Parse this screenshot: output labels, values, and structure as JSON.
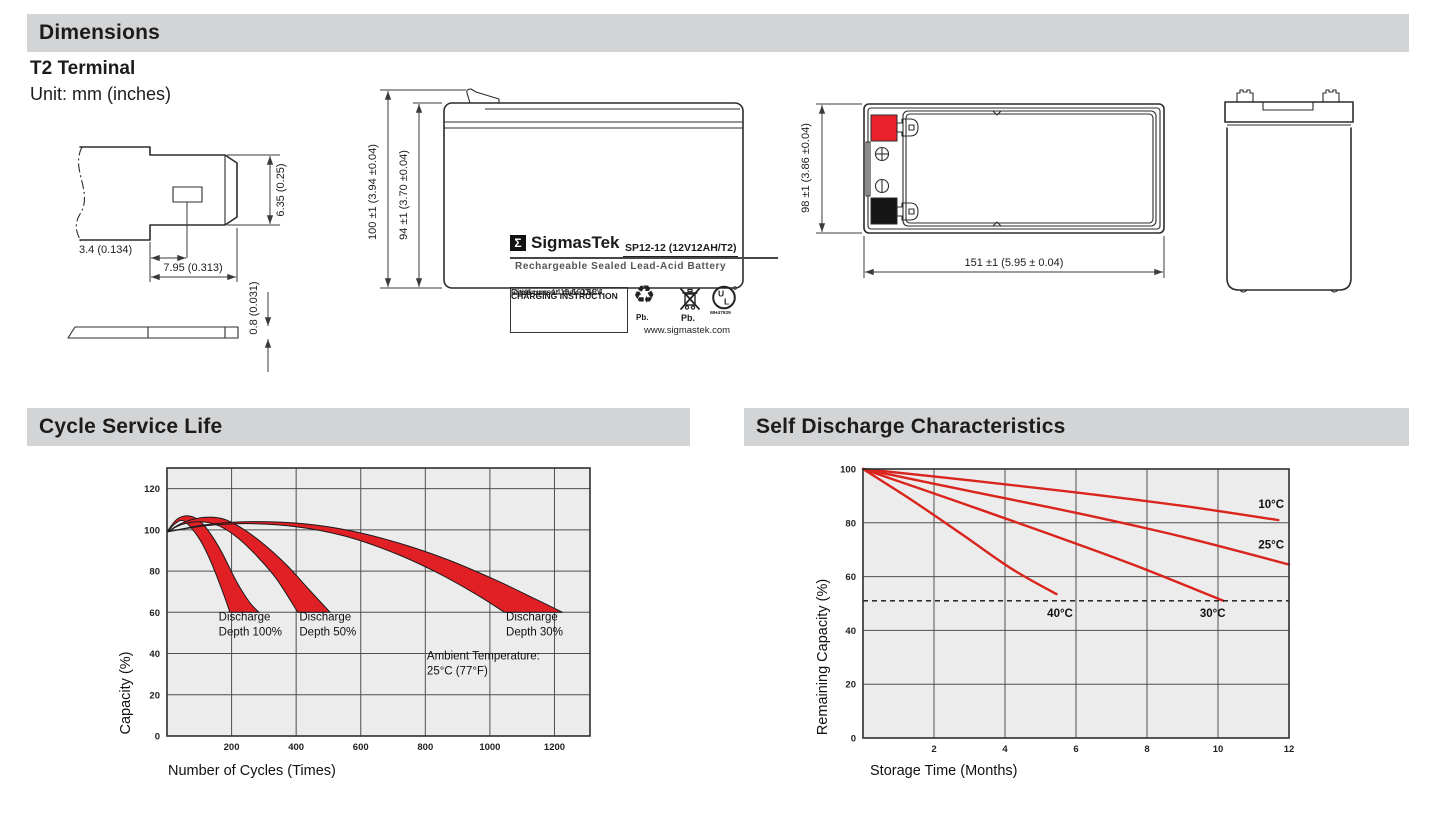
{
  "sections": {
    "dimensions_title": "Dimensions",
    "cycle_title": "Cycle Service Life",
    "self_discharge_title": "Self Discharge Characteristics"
  },
  "dimensions": {
    "terminal_type": "T2 Terminal",
    "unit_note": "Unit: mm (inches)",
    "terminal_detail": {
      "height": "6.35 (0.25)",
      "offset": "3.4 (0.134)",
      "width": "7.95 (0.313)",
      "thickness": "0.8 (0.031)"
    },
    "front_view": {
      "total_height": "100 ±1 (3.94 ±0.04)",
      "case_height": "94 ±1 (3.70 ±0.04)"
    },
    "top_view": {
      "width": "98 ±1 (3.86 ±0.04)",
      "length": "151 ±1 (5.95 ± 0.04)"
    },
    "label": {
      "sigma": "Σ",
      "brand": "SigmasTek",
      "model": "SP12-12 (12V12AH/T2)",
      "subtitle": "Rechargeable Sealed Lead-Acid Battery",
      "charging_title": "CHARGING INSTRUCTION",
      "charging_lines": [
        "Floating use: 13.5~13.8V",
        "Cycle use: 14.4~15.0V",
        "Initial current: max 0.3CA"
      ],
      "pb_recycle": "Pb.",
      "pb_bin": "Pb.",
      "recycle_glyph": "♻",
      "ul_letters": "UL",
      "ul_code": "MH47929",
      "website": "www.sigmastek.com"
    }
  },
  "colors": {
    "accent_red": "#e8212b",
    "band_red": "#e02025",
    "line_red": "#d9251d",
    "header_bar_bg": "#d3d4d6",
    "plot_bg": "#ececec"
  },
  "chart_data": [
    {
      "type": "area",
      "title": "Cycle Service Life",
      "xlabel": "Number of Cycles (Times)",
      "ylabel": "Capacity (%)",
      "xlim": [
        0,
        1310
      ],
      "ylim": [
        0,
        130
      ],
      "x_ticks": [
        200,
        400,
        600,
        800,
        1000,
        1200
      ],
      "y_ticks": [
        0,
        20,
        40,
        60,
        80,
        100,
        120
      ],
      "grid": true,
      "plot_bg": "#ececec",
      "band_color": "#e02025",
      "bands": [
        {
          "name": "Discharge Depth 100%",
          "upper": [
            [
              0,
              99
            ],
            [
              30,
              105
            ],
            [
              65,
              106.8
            ],
            [
              100,
              104.5
            ],
            [
              135,
              98
            ],
            [
              170,
              89
            ],
            [
              215,
              75
            ],
            [
              255,
              65
            ],
            [
              285,
              60
            ]
          ],
          "lower": [
            [
              0,
              99
            ],
            [
              25,
              103
            ],
            [
              50,
              104.5
            ],
            [
              80,
              100
            ],
            [
              110,
              93
            ],
            [
              140,
              83
            ],
            [
              170,
              71
            ],
            [
              195,
              60
            ]
          ]
        },
        {
          "name": "Discharge Depth 50%",
          "upper": [
            [
              0,
              99
            ],
            [
              50,
              103.5
            ],
            [
              110,
              106
            ],
            [
              170,
              105.5
            ],
            [
              230,
              101
            ],
            [
              300,
              93
            ],
            [
              370,
              83
            ],
            [
              440,
              71
            ],
            [
              505,
              60
            ]
          ],
          "lower": [
            [
              0,
              99
            ],
            [
              45,
              102.5
            ],
            [
              100,
              104
            ],
            [
              160,
              102
            ],
            [
              220,
              96
            ],
            [
              280,
              87
            ],
            [
              340,
              76
            ],
            [
              405,
              60
            ]
          ]
        },
        {
          "name": "Discharge Depth 30%",
          "upper": [
            [
              0,
              99
            ],
            [
              120,
              102.5
            ],
            [
              260,
              104
            ],
            [
              420,
              103
            ],
            [
              570,
              99.5
            ],
            [
              720,
              93.5
            ],
            [
              870,
              85.5
            ],
            [
              1020,
              75.5
            ],
            [
              1140,
              66.5
            ],
            [
              1225,
              60
            ]
          ],
          "lower": [
            [
              0,
              99
            ],
            [
              120,
              102
            ],
            [
              250,
              103
            ],
            [
              400,
              101.5
            ],
            [
              550,
              97
            ],
            [
              700,
              89
            ],
            [
              840,
              79
            ],
            [
              960,
              68.5
            ],
            [
              1045,
              60
            ]
          ]
        }
      ],
      "annotations": [
        {
          "lines": [
            "Discharge",
            "Depth 100%"
          ],
          "x": 160,
          "y": 56
        },
        {
          "lines": [
            "Discharge",
            "Depth 50%"
          ],
          "x": 410,
          "y": 56
        },
        {
          "lines": [
            "Discharge",
            "Depth 30%"
          ],
          "x": 1050,
          "y": 56
        },
        {
          "lines": [
            "Ambient Temperature:",
            "25°C (77°F)"
          ],
          "x": 805,
          "y": 37
        }
      ]
    },
    {
      "type": "line",
      "title": "Self Discharge Characteristics",
      "xlabel": "Storage Time (Months)",
      "ylabel": "Remaining Capacity (%)",
      "xlim": [
        0,
        12
      ],
      "ylim": [
        0,
        100
      ],
      "x_ticks": [
        2,
        4,
        6,
        8,
        10,
        12
      ],
      "y_ticks": [
        0,
        20,
        40,
        60,
        80,
        100
      ],
      "grid": true,
      "plot_bg": "#ececec",
      "line_color": "#d9251d",
      "dashed_line_y": 51,
      "series": [
        {
          "name": "10°C",
          "points": [
            [
              0,
              100
            ],
            [
              3,
              95.8
            ],
            [
              6,
              91.3
            ],
            [
              9,
              86.3
            ],
            [
              11.7,
              81
            ]
          ],
          "label_x": 11.5,
          "label_y": 85.5
        },
        {
          "name": "25°C",
          "points": [
            [
              0,
              100
            ],
            [
              3,
              91.8
            ],
            [
              6,
              83.7
            ],
            [
              9,
              74.8
            ],
            [
              12,
              64.5
            ]
          ],
          "label_x": 11.5,
          "label_y": 70.5
        },
        {
          "name": "30°C",
          "points": [
            [
              0,
              100
            ],
            [
              2.5,
              88.6
            ],
            [
              5,
              77
            ],
            [
              7.6,
              64.5
            ],
            [
              10.15,
              51
            ]
          ],
          "label_x": 9.85,
          "label_y": 45
        },
        {
          "name": "40°C",
          "points": [
            [
              0,
              100
            ],
            [
              1.4,
              88.2
            ],
            [
              2.8,
              75.6
            ],
            [
              4.2,
              62.8
            ],
            [
              5.45,
              53.5
            ]
          ],
          "label_x": 5.55,
          "label_y": 45
        }
      ]
    }
  ]
}
